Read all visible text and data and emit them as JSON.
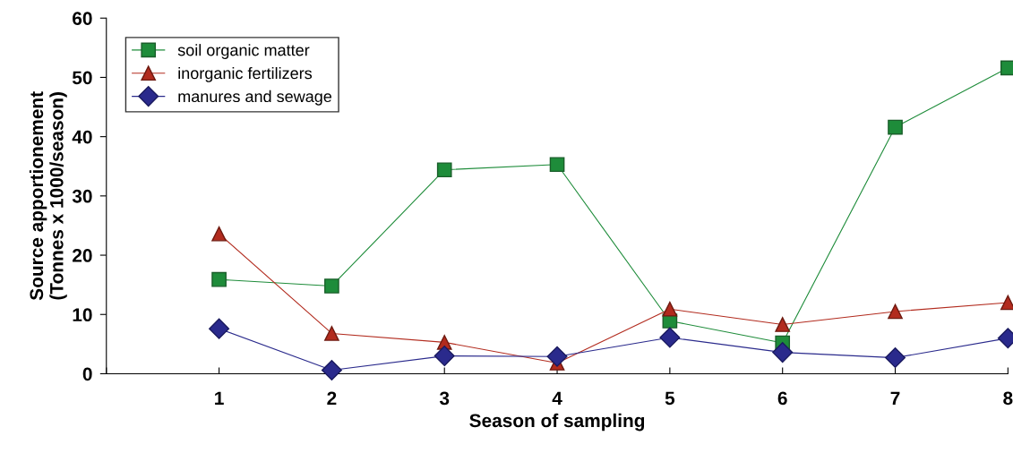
{
  "chart_data": {
    "type": "line",
    "xlabel": "Season of sampling",
    "ylabel": "Source apportionement\n(Tonnes x 1000/season)",
    "x": [
      1,
      2,
      3,
      4,
      5,
      6,
      7,
      8
    ],
    "xlim": [
      0,
      8
    ],
    "xticks": [
      {
        "value": 0,
        "label": null
      },
      1,
      2,
      3,
      4,
      5,
      6,
      7,
      8
    ],
    "ylim": [
      0,
      60
    ],
    "yticks": [
      0,
      10,
      20,
      30,
      40,
      50,
      60
    ],
    "grid": false,
    "legend": "top left",
    "series": [
      {
        "name": "soil organic matter",
        "color": "#1e8c3a",
        "marker": "square",
        "values": [
          15.9,
          14.8,
          34.4,
          35.3,
          8.9,
          5.2,
          41.6,
          51.6
        ]
      },
      {
        "name": "inorganic fertilizers",
        "color": "#b22b1e",
        "marker": "triangle",
        "values": [
          23.6,
          6.8,
          5.3,
          1.8,
          10.9,
          8.3,
          10.5,
          12.0
        ]
      },
      {
        "name": "manures and sewage",
        "color": "#2a2a8c",
        "marker": "diamond",
        "values": [
          7.6,
          0.6,
          3.0,
          2.9,
          6.1,
          3.6,
          2.7,
          6.0
        ]
      }
    ]
  }
}
